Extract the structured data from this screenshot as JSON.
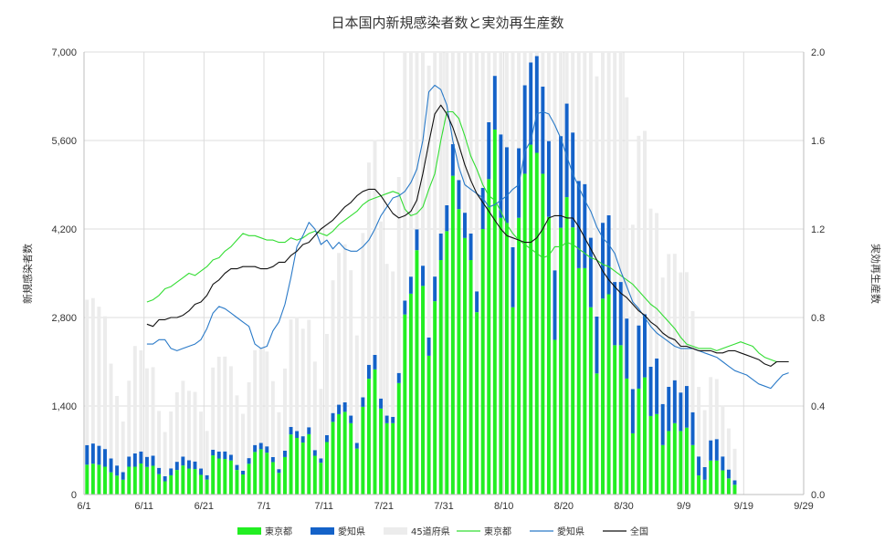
{
  "chart_data": {
    "type": "bar",
    "title": "日本国内新規感染者数と実効再生産数",
    "ylabel_left": "新規感染者数",
    "ylabel_right": "実効再生産数",
    "xlabel": "",
    "x_start": "6/1",
    "x_tick_labels": [
      "6/1",
      "6/11",
      "6/21",
      "7/1",
      "7/11",
      "7/21",
      "7/31",
      "8/10",
      "8/20",
      "8/30",
      "9/9",
      "9/19",
      "9/29"
    ],
    "ylim_left": [
      0,
      7000
    ],
    "y_ticks_left": [
      "0",
      "1,400",
      "2,800",
      "4,200",
      "5,600",
      "7,000"
    ],
    "ylim_right": [
      0,
      2.0
    ],
    "y_ticks_right": [
      "0.0",
      "0.4",
      "0.8",
      "1.2",
      "1.6",
      "2.0"
    ],
    "grid": "vertical every 10 days, horizontal on left ticks",
    "legend_position": "bottom",
    "colors": {
      "tokyo_bar": "#22ee22",
      "aichi_bar": "#1462c8",
      "other_bar": "#ececec",
      "tokyo_line": "#33dd33",
      "aichi_line": "#2a7ac8",
      "national_line": "#111111",
      "grid": "#dcdcdc"
    },
    "series": [
      {
        "name": "東京都",
        "kind": "bar",
        "stack": "cases",
        "values": [
          472,
          487,
          471,
          440,
          351,
          299,
          234,
          440,
          440,
          491,
          436,
          455,
          322,
          209,
          304,
          388,
          459,
          411,
          403,
          311,
          236,
          619,
          570,
          562,
          539,
          388,
          317,
          486,
          673,
          716,
          662,
          513,
          342,
          593,
          950,
          895,
          822,
          954,
          613,
          502,
          830,
          1149,
          1271,
          1308,
          1128,
          727,
          1387,
          1832,
          1979,
          1359,
          1128,
          1129,
          1763,
          2848,
          3177,
          3865,
          3300,
          2195,
          3058,
          3709,
          4166,
          5042,
          4515,
          4058,
          3709,
          2884,
          4200,
          4989,
          5773,
          4377,
          4295,
          2962,
          4377,
          5074,
          5534,
          5405,
          5074,
          4392,
          2447,
          4220,
          4704,
          4227,
          3581,
          3581,
          2962,
          1915,
          3099,
          3168,
          2362,
          2362,
          1834,
          968,
          1675,
          1853,
          1242,
          1273,
          782,
          1004,
          1128,
          1004,
          1057,
          782,
          302,
          234,
          537,
          537,
          382,
          255,
          154
        ]
      },
      {
        "name": "愛知県",
        "kind": "bar",
        "stack": "cases",
        "values": [
          310,
          320,
          300,
          280,
          220,
          160,
          120,
          160,
          210,
          190,
          160,
          160,
          100,
          80,
          110,
          130,
          140,
          130,
          120,
          100,
          70,
          90,
          110,
          120,
          90,
          80,
          60,
          90,
          110,
          100,
          100,
          80,
          60,
          100,
          120,
          110,
          100,
          110,
          90,
          70,
          110,
          140,
          150,
          150,
          120,
          90,
          150,
          220,
          230,
          160,
          120,
          100,
          160,
          220,
          270,
          330,
          320,
          290,
          390,
          420,
          410,
          500,
          460,
          400,
          420,
          330,
          650,
          900,
          850,
          1320,
          1200,
          950,
          1100,
          1400,
          1300,
          1530,
          1380,
          1200,
          1100,
          1450,
          1480,
          1500,
          1380,
          1330,
          1100,
          900,
          1200,
          1250,
          1000,
          1000,
          950,
          700,
          1000,
          1000,
          780,
          880,
          650,
          700,
          680,
          610,
          660,
          520,
          300,
          200,
          320,
          340,
          220,
          140,
          70
        ]
      },
      {
        "name": "45道府県",
        "kind": "bar",
        "stack": "cases",
        "values": [
          2300,
          2300,
          2200,
          2100,
          1500,
          1100,
          800,
          1200,
          1700,
          1600,
          1400,
          1400,
          900,
          700,
          900,
          1100,
          1200,
          1100,
          1100,
          900,
          700,
          1300,
          1500,
          1500,
          1400,
          1100,
          900,
          1200,
          1500,
          1500,
          1500,
          1200,
          900,
          1300,
          1700,
          1800,
          1700,
          1700,
          1400,
          1100,
          1600,
          2100,
          2400,
          2500,
          2300,
          1700,
          2600,
          3200,
          3400,
          2800,
          2400,
          2300,
          3100,
          4000,
          4300,
          4600,
          4500,
          4300,
          4600,
          4800,
          5200,
          5400,
          5500,
          5400,
          5200,
          4600,
          5300,
          5700,
          6000,
          6000,
          5700,
          5000,
          5500,
          6000,
          6100,
          6100,
          6000,
          5600,
          4800,
          5500,
          5700,
          5500,
          5200,
          5000,
          4600,
          3800,
          4400,
          4400,
          4000,
          3900,
          3500,
          2600,
          3000,
          2900,
          2500,
          2300,
          2000,
          2100,
          2000,
          1900,
          1800,
          1600,
          1100,
          900,
          1000,
          950,
          800,
          650,
          500
        ]
      },
      {
        "name": "東京都",
        "kind": "line",
        "axis": "right",
        "x_from": "6/11",
        "values": [
          0.87,
          0.88,
          0.9,
          0.93,
          0.94,
          0.96,
          0.98,
          1.0,
          0.99,
          1.01,
          1.03,
          1.06,
          1.07,
          1.1,
          1.12,
          1.15,
          1.18,
          1.17,
          1.17,
          1.16,
          1.15,
          1.15,
          1.14,
          1.14,
          1.16,
          1.15,
          1.16,
          1.18,
          1.19,
          1.18,
          1.17,
          1.19,
          1.22,
          1.24,
          1.26,
          1.28,
          1.31,
          1.33,
          1.34,
          1.35,
          1.36,
          1.37,
          1.36,
          1.29,
          1.26,
          1.27,
          1.3,
          1.38,
          1.45,
          1.6,
          1.73,
          1.73,
          1.7,
          1.62,
          1.53,
          1.47,
          1.4,
          1.35,
          1.33,
          1.28,
          1.22,
          1.18,
          1.15,
          1.13,
          1.11,
          1.09,
          1.07,
          1.08,
          1.12,
          1.12,
          1.14,
          1.13,
          1.11,
          1.09,
          1.07,
          1.06,
          1.04,
          1.03,
          1.01,
          0.99,
          0.97,
          0.95,
          0.92,
          0.89,
          0.86,
          0.84,
          0.81,
          0.78,
          0.75,
          0.71,
          0.68,
          0.67,
          0.66,
          0.66,
          0.66,
          0.65,
          0.66,
          0.67,
          0.68,
          0.69,
          0.68,
          0.67,
          0.64,
          0.62,
          0.61,
          0.6,
          0.6,
          0.6
        ]
      },
      {
        "name": "愛知県",
        "kind": "line",
        "axis": "right",
        "x_from": "6/11",
        "values": [
          0.68,
          0.68,
          0.7,
          0.7,
          0.66,
          0.65,
          0.66,
          0.67,
          0.68,
          0.7,
          0.75,
          0.82,
          0.85,
          0.84,
          0.82,
          0.8,
          0.78,
          0.76,
          0.68,
          0.66,
          0.67,
          0.74,
          0.78,
          0.86,
          0.98,
          1.12,
          1.17,
          1.23,
          1.2,
          1.13,
          1.15,
          1.11,
          1.14,
          1.11,
          1.1,
          1.1,
          1.12,
          1.15,
          1.2,
          1.26,
          1.3,
          1.34,
          1.35,
          1.37,
          1.41,
          1.47,
          1.6,
          1.82,
          1.85,
          1.83,
          1.76,
          1.6,
          1.48,
          1.4,
          1.38,
          1.36,
          1.34,
          1.3,
          1.31,
          1.33,
          1.35,
          1.38,
          1.4,
          1.55,
          1.6,
          1.72,
          1.73,
          1.72,
          1.67,
          1.61,
          1.53,
          1.45,
          1.39,
          1.33,
          1.28,
          1.21,
          1.16,
          1.13,
          1.09,
          1.01,
          0.94,
          0.87,
          0.84,
          0.8,
          0.76,
          0.73,
          0.71,
          0.69,
          0.67,
          0.66,
          0.66,
          0.66,
          0.65,
          0.64,
          0.63,
          0.62,
          0.6,
          0.58,
          0.56,
          0.55,
          0.54,
          0.52,
          0.5,
          0.49,
          0.48,
          0.51,
          0.54,
          0.55
        ]
      },
      {
        "name": "全国",
        "kind": "line",
        "axis": "right",
        "x_from": "6/11",
        "values": [
          0.77,
          0.76,
          0.79,
          0.79,
          0.8,
          0.8,
          0.81,
          0.83,
          0.86,
          0.87,
          0.9,
          0.95,
          0.97,
          1.0,
          1.02,
          1.02,
          1.03,
          1.03,
          1.03,
          1.02,
          1.02,
          1.03,
          1.05,
          1.05,
          1.08,
          1.1,
          1.13,
          1.14,
          1.17,
          1.2,
          1.22,
          1.24,
          1.27,
          1.3,
          1.32,
          1.35,
          1.37,
          1.38,
          1.38,
          1.35,
          1.31,
          1.27,
          1.25,
          1.26,
          1.28,
          1.33,
          1.45,
          1.59,
          1.72,
          1.76,
          1.72,
          1.66,
          1.58,
          1.49,
          1.42,
          1.36,
          1.32,
          1.28,
          1.24,
          1.2,
          1.17,
          1.16,
          1.15,
          1.14,
          1.14,
          1.16,
          1.2,
          1.25,
          1.26,
          1.26,
          1.25,
          1.25,
          1.21,
          1.16,
          1.11,
          1.06,
          1.01,
          0.97,
          0.94,
          0.91,
          0.89,
          0.86,
          0.83,
          0.81,
          0.78,
          0.76,
          0.73,
          0.71,
          0.7,
          0.67,
          0.67,
          0.66,
          0.65,
          0.65,
          0.65,
          0.64,
          0.64,
          0.65,
          0.65,
          0.64,
          0.63,
          0.62,
          0.61,
          0.59,
          0.58,
          0.6,
          0.6,
          0.6
        ]
      }
    ]
  }
}
